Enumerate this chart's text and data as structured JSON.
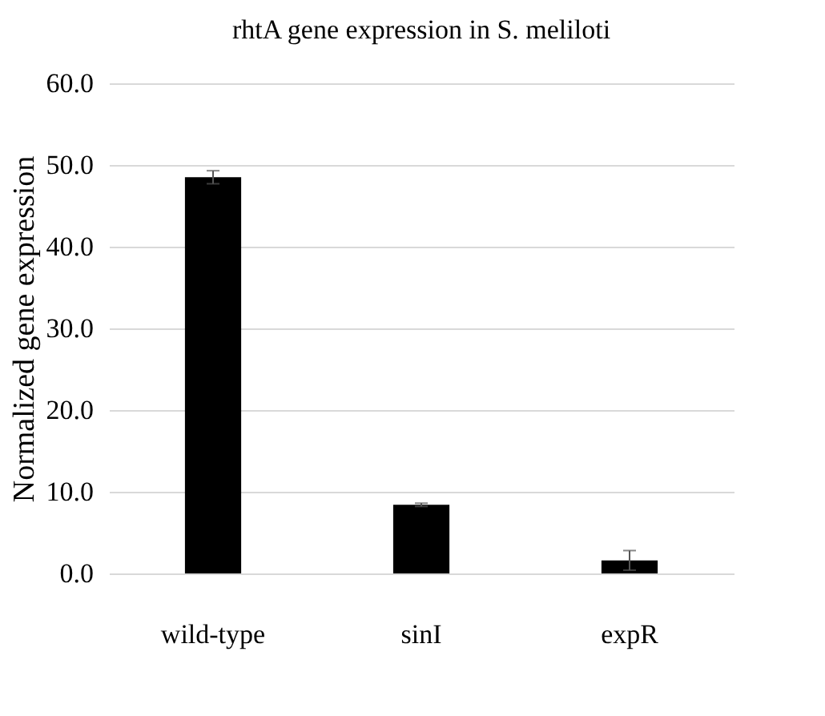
{
  "chart_data": {
    "type": "bar",
    "title": "rhtA gene expression in S. meliloti",
    "ylabel": "Normalized gene expression",
    "categories": [
      "wild-type",
      "sinI",
      "expR"
    ],
    "values": [
      48.5,
      8.4,
      1.6
    ],
    "errors": [
      0.8,
      0.2,
      1.2
    ],
    "color": "#000000",
    "ylim": [
      0,
      60
    ],
    "yticks": [
      {
        "value": 0,
        "label": "0.0"
      },
      {
        "value": 10,
        "label": "10.0"
      },
      {
        "value": 20,
        "label": "20.0"
      },
      {
        "value": 30,
        "label": "30.0"
      },
      {
        "value": 40,
        "label": "40.0"
      },
      {
        "value": 50,
        "label": "50.0"
      },
      {
        "value": 60,
        "label": "60.0"
      }
    ],
    "grid": "y"
  }
}
